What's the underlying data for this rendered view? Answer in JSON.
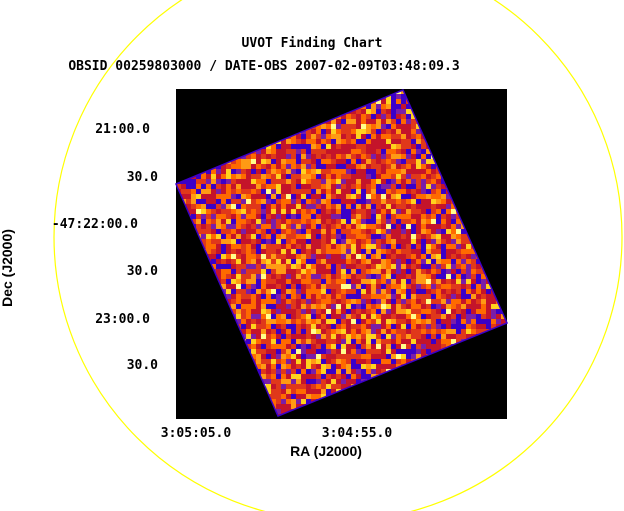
{
  "title": "UVOT Finding Chart",
  "subtitle": "OBSID 00259803000 / DATE-OBS 2007-02-09T03:48:09.3",
  "x_axis": {
    "label": "RA (J2000)",
    "tick_labels": [
      "3:05:05.0",
      "3:04:55.0"
    ]
  },
  "y_axis": {
    "label": "Dec (J2000)",
    "tick_labels": [
      "21:00.0",
      "30.0",
      "-47:22:00.0",
      "30.0",
      "23:00.0",
      "30.0"
    ]
  },
  "colors": {
    "circle": "#ffff00",
    "frame_background": "#000000",
    "image_edge": "#3b00c8",
    "palette": [
      "#3b00c8",
      "#7a1ea8",
      "#c4142a",
      "#e0381a",
      "#ff6a00",
      "#ff9a14",
      "#ffd21e",
      "#ffff8c"
    ]
  },
  "icons": {
    "circle": "yellow-circle-outline",
    "image": "rotated-noise-image-heat-colormap"
  }
}
